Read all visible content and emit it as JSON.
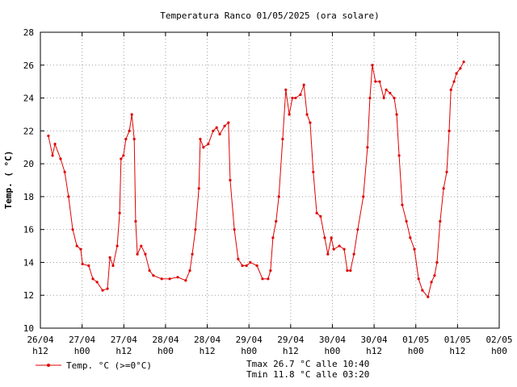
{
  "chart_data": {
    "type": "line",
    "title": "Temperatura Ranco 01/05/2025 (ora solare)",
    "y_label": "Temp. ( °C)",
    "annotations": [
      "Tmax 26.7 °C alle 10:40",
      "Tmin 11.8 °C alle 03:20"
    ],
    "xlim": [
      0,
      132
    ],
    "xticks": [
      {
        "value": 0,
        "label": "26/04 h12"
      },
      {
        "value": 12,
        "label": "27/04 h00"
      },
      {
        "value": 24,
        "label": "27/04 h12"
      },
      {
        "value": 36,
        "label": "28/04 h00"
      },
      {
        "value": 48,
        "label": "28/04 h12"
      },
      {
        "value": 60,
        "label": "29/04 h00"
      },
      {
        "value": 72,
        "label": "29/04 h12"
      },
      {
        "value": 84,
        "label": "30/04 h00"
      },
      {
        "value": 96,
        "label": "30/04 h12"
      },
      {
        "value": 108,
        "label": "01/05 h00"
      },
      {
        "value": 120,
        "label": "01/05 h12"
      },
      {
        "value": 132,
        "label": "02/05 h00"
      }
    ],
    "ylim": [
      10,
      28
    ],
    "yticks": [
      10,
      12,
      14,
      16,
      18,
      20,
      22,
      24,
      26,
      28
    ],
    "grid": true,
    "x": [
      2.3,
      3.5,
      4.2,
      5.8,
      7,
      8.1,
      9.3,
      10.5,
      11.6,
      12.1,
      13.9,
      15.1,
      16.3,
      17.9,
      19.3,
      20,
      20.9,
      22.1,
      22.8,
      23.2,
      23.9,
      24.6,
      25.6,
      26.3,
      27,
      27.4,
      27.9,
      29,
      30.2,
      31.4,
      32.5,
      34.9,
      37.2,
      39.5,
      41.8,
      43,
      43.7,
      44.6,
      45.6,
      46,
      46.9,
      48.3,
      49.7,
      50.7,
      51.6,
      53,
      54.1,
      54.6,
      55.8,
      56.9,
      58.1,
      59.3,
      60.4,
      62.3,
      63.9,
      65.5,
      66.2,
      66.9,
      67.8,
      68.6,
      69.7,
      70.6,
      71.6,
      72.5,
      73.4,
      74.8,
      75.8,
      76.7,
      77.6,
      78.5,
      79.5,
      80.6,
      81.8,
      82.7,
      83.7,
      84.4,
      86,
      87.4,
      88.3,
      89.2,
      90.2,
      91.3,
      92.9,
      94.1,
      94.8,
      95.5,
      96.4,
      97.6,
      98.8,
      99.5,
      100.6,
      101.8,
      102.5,
      103.2,
      104.1,
      105.3,
      106.4,
      107.6,
      108.8,
      109.9,
      111.5,
      112.5,
      113.4,
      114.1,
      115,
      116,
      116.9,
      117.6,
      118.1,
      119,
      119.7,
      120.8,
      121.8
    ],
    "series": [
      {
        "name": "Temp. °C (>=0°C)",
        "color": "#e00000",
        "values": [
          21.7,
          20.5,
          21.2,
          20.3,
          19.5,
          18,
          16,
          15,
          14.8,
          13.9,
          13.8,
          13,
          12.8,
          12.3,
          12.4,
          14.3,
          13.8,
          15,
          17,
          20.3,
          20.5,
          21.5,
          22,
          23,
          21.5,
          16.5,
          14.5,
          15,
          14.5,
          13.5,
          13.2,
          13,
          13,
          13.1,
          12.9,
          13.5,
          14.5,
          16,
          18.5,
          21.5,
          21,
          21.2,
          22,
          22.2,
          21.8,
          22.3,
          22.5,
          19,
          16,
          14.2,
          13.8,
          13.8,
          14,
          13.8,
          13,
          13,
          13.5,
          15.5,
          16.5,
          18,
          21.5,
          24.5,
          23,
          24,
          24,
          24.2,
          24.8,
          23,
          22.5,
          19.5,
          17,
          16.8,
          15.5,
          14.5,
          15.5,
          14.8,
          15,
          14.8,
          13.5,
          13.5,
          14.5,
          16,
          18,
          21,
          24,
          26,
          25,
          25,
          24,
          24.5,
          24.3,
          24,
          23,
          20.5,
          17.5,
          16.5,
          15.5,
          14.8,
          13,
          12.3,
          11.9,
          12.8,
          13.2,
          14,
          16.5,
          18.5,
          19.5,
          22,
          24.5,
          25,
          25.5,
          25.8,
          26.2
        ]
      }
    ]
  }
}
